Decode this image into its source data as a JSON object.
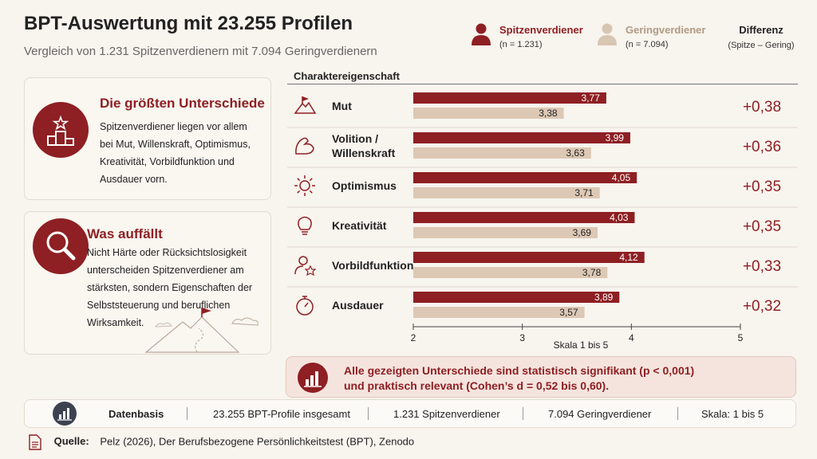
{
  "title": "BPT-Auswertung mit 23.255 Profilen",
  "subtitle": "Vergleich von 1.231 Spitzenverdienern mit 7.094 Geringverdienern",
  "legend": {
    "top": {
      "label": "Spitzenverdiener",
      "n": "(n = 1.231)"
    },
    "low": {
      "label": "Geringverdiener",
      "n": "(n = 7.094)"
    },
    "diff": {
      "label": "Differenz",
      "sub": "(Spitze – Gering)"
    }
  },
  "cards": {
    "differences": {
      "title": "Die größten Unterschiede",
      "lines": [
        "Spitzenverdiener liegen vor allem",
        "bei Mut, Willenskraft, Optimismus,",
        "Kreativität, Vorbildfunktion und",
        "Ausdauer vorn."
      ]
    },
    "notable": {
      "title": "Was auffällt",
      "lines": [
        "Nicht Härte oder Rücksichtslosigkeit",
        "unterscheiden Spitzenverdiener am",
        "stärksten, sondern Eigenschaften der",
        "Selbststeuerung und beruflichen",
        "Wirksamkeit."
      ]
    }
  },
  "chart_header": "Charaktereigenschaft",
  "colors": {
    "top": "#8e1f23",
    "low": "#dcc8b4",
    "diff": "#8e1f23"
  },
  "chart_data": {
    "type": "bar",
    "orientation": "horizontal",
    "categories": [
      {
        "label": [
          "Mut"
        ],
        "icon": "mountain-flag-icon"
      },
      {
        "label": [
          "Volition /",
          "Willenskraft"
        ],
        "icon": "flexed-arm-icon"
      },
      {
        "label": [
          "Optimismus"
        ],
        "icon": "sun-icon"
      },
      {
        "label": [
          "Kreativität"
        ],
        "icon": "lightbulb-icon"
      },
      {
        "label": [
          "Vorbildfunktion"
        ],
        "icon": "person-star-icon"
      },
      {
        "label": [
          "Ausdauer"
        ],
        "icon": "stopwatch-icon"
      }
    ],
    "series": [
      {
        "name": "Spitzenverdiener",
        "values": [
          3.77,
          3.99,
          4.05,
          4.03,
          4.12,
          3.89
        ],
        "value_labels": [
          "3,77",
          "3,99",
          "4,05",
          "4,03",
          "4,12",
          "3,89"
        ]
      },
      {
        "name": "Geringverdiener",
        "values": [
          3.38,
          3.63,
          3.71,
          3.69,
          3.78,
          3.57
        ],
        "value_labels": [
          "3,38",
          "3,63",
          "3,71",
          "3,69",
          "3,78",
          "3,57"
        ]
      }
    ],
    "differences": [
      "+0,38",
      "+0,36",
      "+0,35",
      "+0,35",
      "+0,33",
      "+0,32"
    ],
    "xlim": [
      2,
      5
    ],
    "xticks": [
      "2",
      "3",
      "4",
      "5"
    ],
    "xlabel": "Skala 1 bis 5",
    "grid": false
  },
  "note": {
    "line1": "Alle gezeigten Unterschiede sind statistisch signifikant (p < 0,001)",
    "line2": "und praktisch relevant (Cohen’s d = 0,52 bis 0,60)."
  },
  "footer": {
    "label": "Datenbasis",
    "items": [
      "23.255 BPT-Profile insgesamt",
      "1.231 Spitzenverdiener",
      "7.094 Geringverdiener",
      "Skala: 1 bis 5"
    ]
  },
  "source": {
    "label": "Quelle:",
    "text": "Pelz (2026), Der Berufsbezogene Persönlichkeitstest (BPT), Zenodo"
  }
}
